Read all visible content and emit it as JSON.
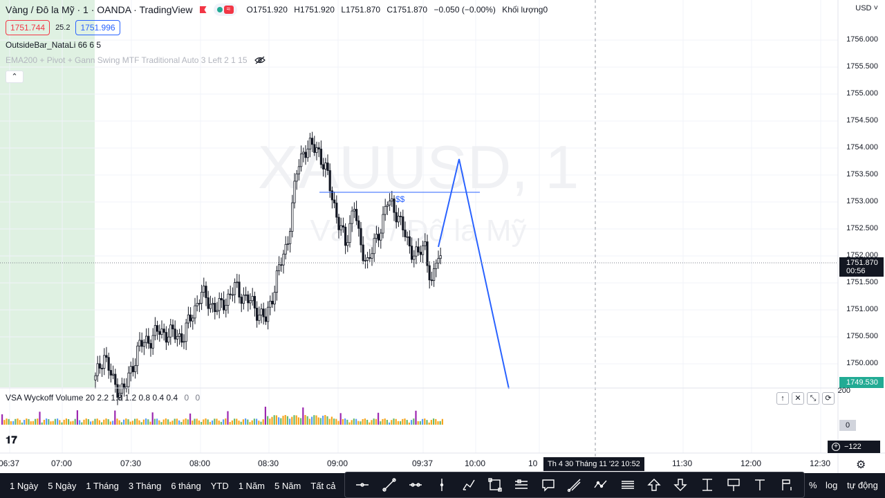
{
  "header": {
    "symbol_title": "Vàng / Đô la Mỹ · 1 · OANDA · TradingView",
    "ohlc": {
      "open": "O1751.920",
      "high": "H1751.920",
      "low": "L1751.870",
      "close": "C1751.870",
      "change": "−0.050 (−0.00%)",
      "volume": "Khối lượng0"
    },
    "sell_price": "1751.744",
    "spread": "25.2",
    "buy_price": "1751.996"
  },
  "indicators": {
    "outside_bar": "OutsideBar_NataLi 66 6 5",
    "ema_pivot": "EMA200 + Pivot + Gann Swing MTF Traditional Auto 3 Left 2 1 15"
  },
  "watermark": {
    "symbol": "XAUUSD, 1",
    "name": "Vàng / Đô la Mỹ"
  },
  "annotation": {
    "liquidity_label": "$$"
  },
  "price_axis": {
    "currency": "USD",
    "labels": [
      "1756.000",
      "1755.500",
      "1755.000",
      "1754.500",
      "1754.000",
      "1753.500",
      "1753.000",
      "1752.500",
      "1752.000",
      "1751.500",
      "1751.000",
      "1750.500",
      "1750.000"
    ],
    "last_price": "1751.870",
    "countdown": "00:56",
    "marker_price": "1749.530"
  },
  "volume_panel": {
    "title": "VSA Wyckoff Volume 20 2.2 1.8 1.2 0.8 0.4 0.4",
    "zero_a": "0",
    "zero_b": "0",
    "axis_top": "200",
    "axis_zero": "0",
    "crosshair_value": "−122",
    "controls": [
      "↑",
      "✕",
      "⤡",
      "⟳"
    ]
  },
  "time_axis": {
    "labels": [
      "06:37",
      "07:00",
      "07:30",
      "08:00",
      "08:30",
      "09:00",
      "09:37",
      "10:00",
      "10",
      "11:30",
      "12:00",
      "12:30"
    ],
    "crosshair_time": "Th 4 30 Tháng 11 '22   10:52"
  },
  "range_buttons": [
    "1 Ngày",
    "5 Ngày",
    "1 Tháng",
    "3 Tháng",
    "6 tháng",
    "YTD",
    "1 Năm",
    "5 Năm",
    "Tất cả"
  ],
  "right_options": {
    "percent": "%",
    "log": "log",
    "auto": "tự động"
  },
  "drawing_tools": [
    "crosshair-tool",
    "trendline-tool",
    "ray-tool",
    "vertical-line-tool",
    "brush-tool",
    "rectangle-tool",
    "position-tool",
    "callout-tool",
    "pitchfork-tool",
    "path-tool",
    "parallel-channel-tool",
    "arrow-up-tool",
    "arrow-down-tool",
    "price-range-tool",
    "text-note-tool",
    "text-tool",
    "fib-tool"
  ],
  "colors": {
    "up": "#22ab94",
    "down": "#131722",
    "bullish_highlight": "#d9efdc",
    "drawing": "#2962ff",
    "volume_orange": "#f7a51c",
    "volume_green": "#66bb6a",
    "volume_purple": "#9c27b0"
  }
}
